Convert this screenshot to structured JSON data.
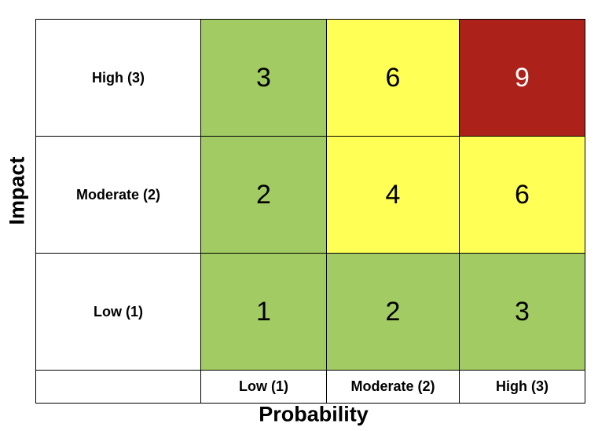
{
  "axes": {
    "y_label": "Impact",
    "x_label": "Probability"
  },
  "rows": [
    {
      "label": "High (3)",
      "cells": [
        {
          "value": "3",
          "color": "#a2cc63",
          "text_color": "#000000"
        },
        {
          "value": "6",
          "color": "#ffff55",
          "text_color": "#000000"
        },
        {
          "value": "9",
          "color": "#ad211b",
          "text_color": "#ffffff"
        }
      ]
    },
    {
      "label": "Moderate (2)",
      "cells": [
        {
          "value": "2",
          "color": "#a2cc63",
          "text_color": "#000000"
        },
        {
          "value": "4",
          "color": "#ffff55",
          "text_color": "#000000"
        },
        {
          "value": "6",
          "color": "#ffff55",
          "text_color": "#000000"
        }
      ]
    },
    {
      "label": "Low (1)",
      "cells": [
        {
          "value": "1",
          "color": "#a2cc63",
          "text_color": "#000000"
        },
        {
          "value": "2",
          "color": "#a2cc63",
          "text_color": "#000000"
        },
        {
          "value": "3",
          "color": "#a2cc63",
          "text_color": "#000000"
        }
      ]
    }
  ],
  "columns": [
    "Low (1)",
    "Moderate (2)",
    "High (3)"
  ]
}
